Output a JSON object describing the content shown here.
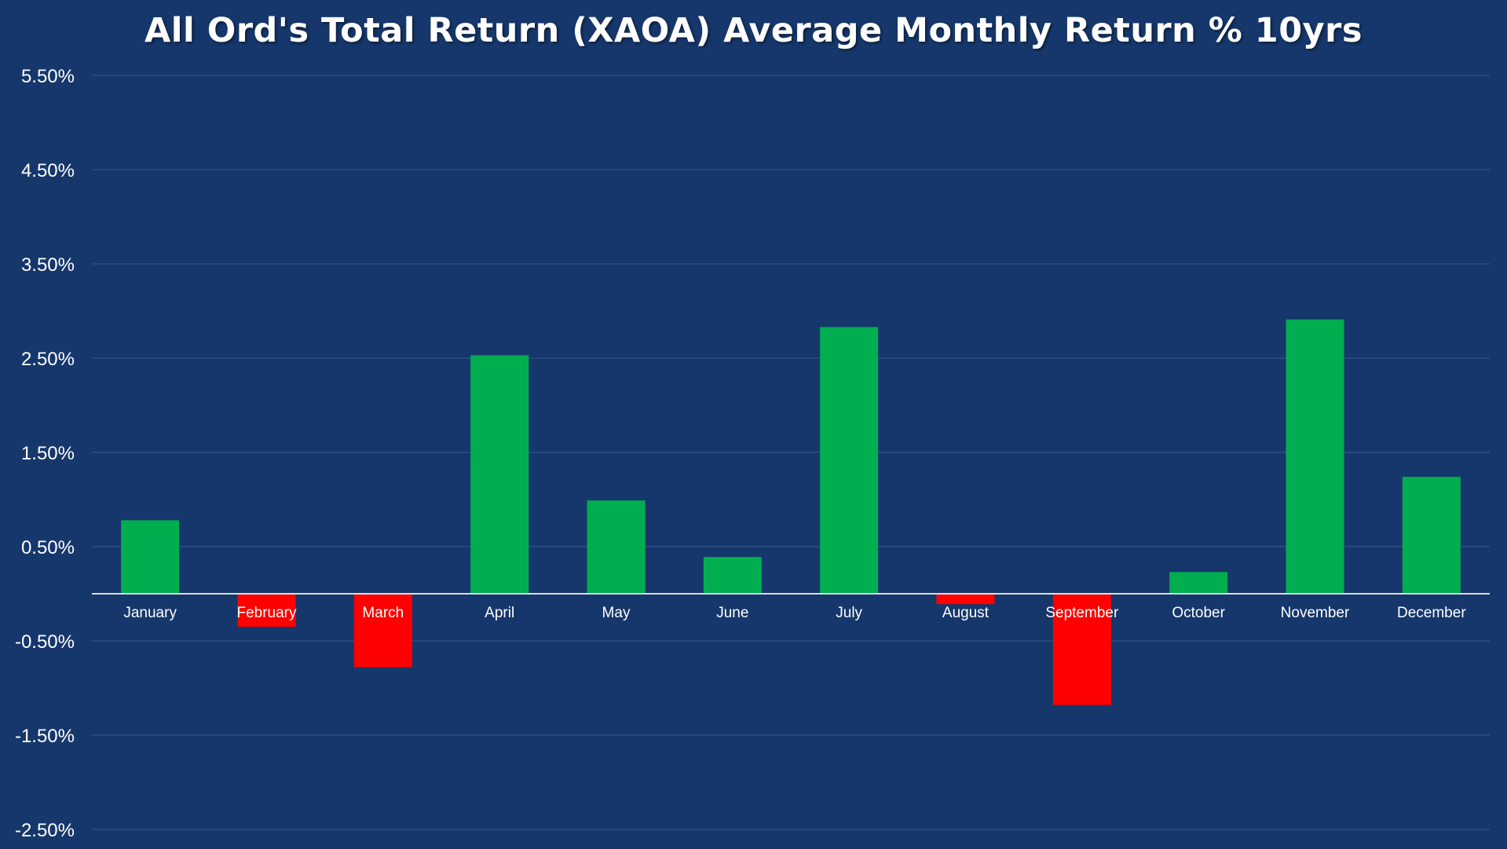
{
  "chart_data": {
    "type": "bar",
    "title": "All Ord's Total Return (XAOA) Average Monthly Return % 10yrs",
    "xlabel": "",
    "ylabel": "",
    "categories": [
      "January",
      "February",
      "March",
      "April",
      "May",
      "June",
      "July",
      "August",
      "September",
      "October",
      "November",
      "December"
    ],
    "values": [
      0.78,
      -0.35,
      -0.78,
      2.53,
      0.99,
      0.39,
      2.83,
      -0.11,
      -1.18,
      0.23,
      2.91,
      1.24
    ],
    "ylim": [
      -2.5,
      5.5
    ],
    "yticks": [
      5.5,
      4.5,
      3.5,
      2.5,
      1.5,
      0.5,
      -0.5,
      -1.5,
      -2.5
    ],
    "ytick_labels": [
      "5.50%",
      "4.50%",
      "3.50%",
      "2.50%",
      "1.50%",
      "0.50%",
      "-0.50%",
      "-1.50%",
      "-2.50%"
    ],
    "grid": true,
    "legend": "none",
    "colors": {
      "background": "#16376b",
      "positive": "#00ae4f",
      "negative": "#ff0000",
      "grid": "#3a5a8c",
      "axis": "#d8dfe9",
      "text": "#ffffff"
    }
  }
}
